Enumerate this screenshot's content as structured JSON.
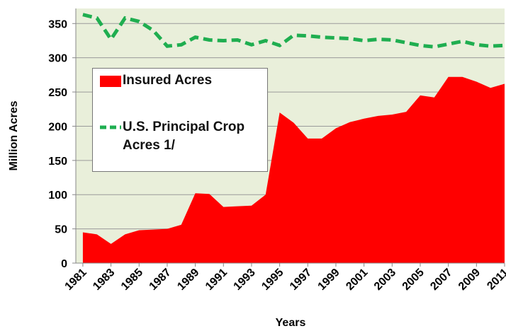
{
  "chart_data": {
    "type": "area-line",
    "x_label": "Years",
    "y_label": "Million Acres",
    "x": [
      1981,
      1982,
      1983,
      1984,
      1985,
      1986,
      1987,
      1988,
      1989,
      1990,
      1991,
      1992,
      1993,
      1994,
      1995,
      1996,
      1997,
      1998,
      1999,
      2000,
      2001,
      2002,
      2003,
      2004,
      2005,
      2006,
      2007,
      2008,
      2009,
      2010,
      2011
    ],
    "series": [
      {
        "name": "Insured Acres",
        "color": "#ff0000",
        "kind": "area",
        "values": [
          45,
          42,
          28,
          42,
          48,
          49,
          50,
          56,
          102,
          101,
          82,
          83,
          84,
          100,
          220,
          205,
          182,
          182,
          197,
          206,
          211,
          215,
          217,
          221,
          245,
          242,
          272,
          272,
          265,
          256,
          262
        ]
      },
      {
        "name": "U.S. Principal Crop Acres 1/",
        "color": "#1fae50",
        "kind": "dashed-line",
        "values": [
          363,
          358,
          327,
          358,
          353,
          340,
          317,
          319,
          330,
          326,
          325,
          326,
          319,
          325,
          318,
          333,
          332,
          330,
          329,
          328,
          325,
          327,
          326,
          322,
          318,
          316,
          320,
          324,
          319,
          317,
          318
        ]
      }
    ],
    "xlim": [
      1980.5,
      2011
    ],
    "xticks": [
      1981,
      1983,
      1985,
      1987,
      1989,
      1991,
      1993,
      1995,
      1997,
      1999,
      2001,
      2003,
      2005,
      2007,
      2009,
      2011
    ],
    "ylim": [
      0,
      372
    ],
    "yticks": [
      0,
      50,
      100,
      150,
      200,
      250,
      300,
      350
    ],
    "grid": true,
    "plot_background": "#e9efda"
  }
}
